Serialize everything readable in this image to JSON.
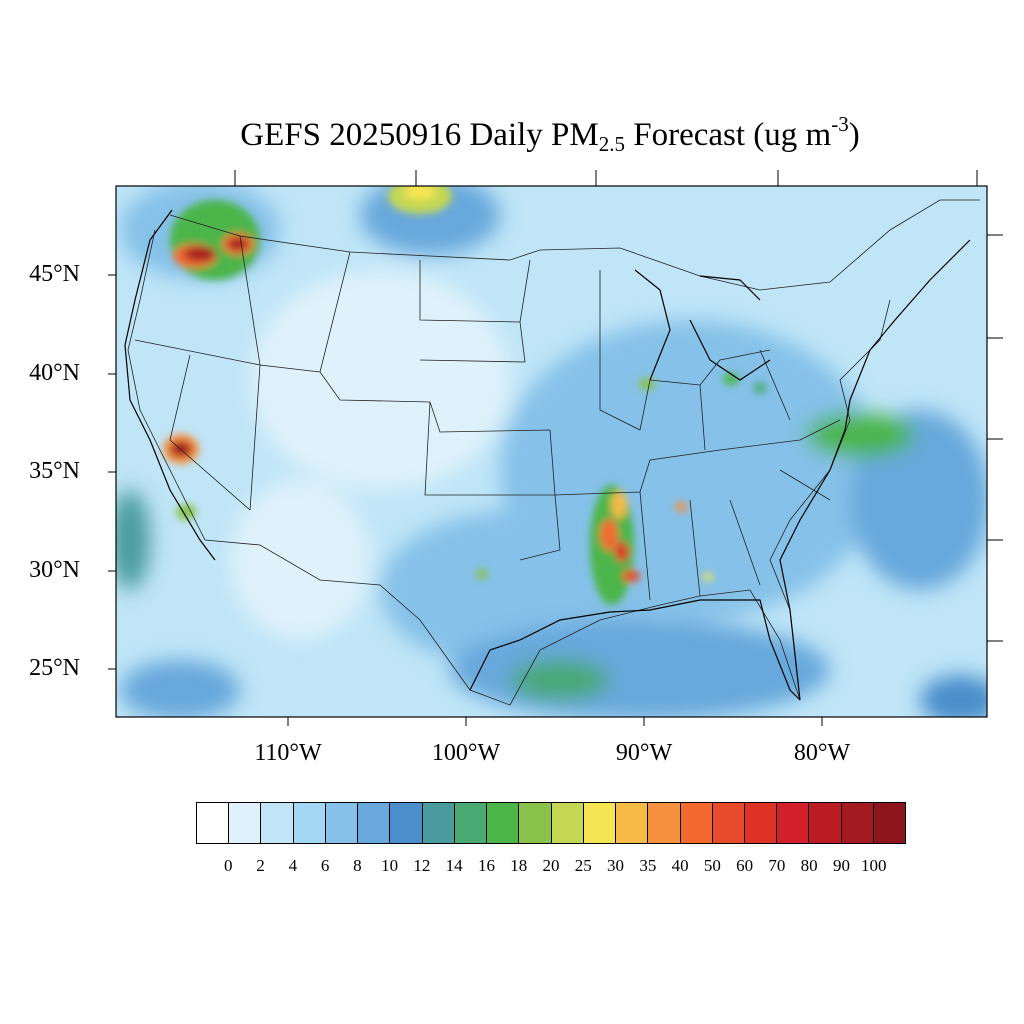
{
  "title": {
    "prefix": "GEFS 20250916 Daily PM",
    "subscript": "2.5",
    "middle": " Forecast (ug m",
    "superscript": "-3",
    "suffix": ")"
  },
  "map": {
    "projection": "Lambert conformal (CONUS)",
    "lat_labels": [
      "45°N",
      "40°N",
      "35°N",
      "30°N",
      "25°N"
    ],
    "lon_labels": [
      "110°W",
      "100°W",
      "90°W",
      "80°W"
    ],
    "background_color": "#bfe5f7",
    "hotspots": [
      {
        "name": "Washington / Oregon Cascades",
        "max_level": "100"
      },
      {
        "name": "Central California (Sierra)",
        "max_level": "100"
      },
      {
        "name": "Southern Montana / Canada border",
        "max_level": "30"
      },
      {
        "name": "Lower Mississippi Valley",
        "max_level": "90"
      },
      {
        "name": "Gulf Coast (Texas/Louisiana)",
        "max_level": "18"
      },
      {
        "name": "Mid-Atlantic coast",
        "max_level": "18"
      }
    ]
  },
  "colorbar": {
    "labels": [
      "0",
      "2",
      "4",
      "6",
      "8",
      "10",
      "12",
      "14",
      "16",
      "18",
      "20",
      "25",
      "30",
      "35",
      "40",
      "50",
      "60",
      "70",
      "80",
      "90",
      "100"
    ],
    "colors": [
      "#ffffff",
      "#dff2fb",
      "#bfe5f7",
      "#a2d8f4",
      "#85c1e8",
      "#68a8dc",
      "#4a8ecb",
      "#4a9b9e",
      "#4aa873",
      "#4cb548",
      "#88c24a",
      "#c4d752",
      "#f6e553",
      "#f6bb47",
      "#f6923f",
      "#f26a30",
      "#e84b2c",
      "#de3227",
      "#d31f2a",
      "#bb1c24",
      "#a31a20",
      "#8c161c"
    ]
  }
}
